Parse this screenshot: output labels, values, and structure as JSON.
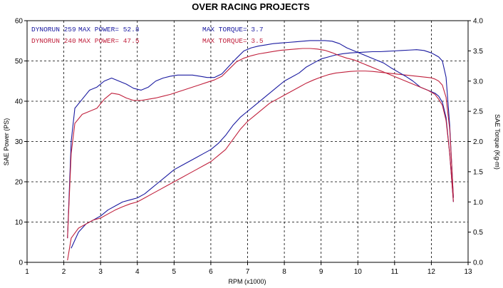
{
  "chart_data": {
    "type": "line",
    "title": "OVER RACING PROJECTS",
    "xlabel": "RPM (x1000)",
    "ylabel_left": "SAE Power (PS)",
    "ylabel_right": "SAE Torque (Kg-m)",
    "xlim": [
      1,
      13
    ],
    "ylim_left": [
      0,
      60
    ],
    "ylim_right": [
      0,
      4
    ],
    "x_ticks": [
      "1",
      "2",
      "3",
      "4",
      "5",
      "6",
      "7",
      "8",
      "9",
      "10",
      "11",
      "12",
      "13"
    ],
    "y_left_ticks": [
      "0",
      "10",
      "20",
      "30",
      "40",
      "50",
      "60"
    ],
    "y_right_ticks": [
      "0.0",
      "0.5",
      "1.0",
      "1.5",
      "2.0",
      "2.5",
      "3.0",
      "3.5",
      "4.0"
    ],
    "grid": true,
    "legend": [
      {
        "run": "DYNORUN 259",
        "power": "MAX POWER= 52.8",
        "torque": "MAX TORQUE= 3.7",
        "color": "#1a1aa0"
      },
      {
        "run": "DYNORUN 240",
        "power": "MAX POWER= 47.5",
        "torque": "MAX TORQUE= 3.5",
        "color": "#c0203c"
      }
    ],
    "series": [
      {
        "name": "DYNORUN 259",
        "measure": "power",
        "axis": "left",
        "color": "#1a1aa0",
        "x": [
          2.2,
          2.4,
          2.6,
          2.8,
          3.0,
          3.2,
          3.4,
          3.6,
          3.8,
          4.0,
          4.2,
          4.4,
          4.6,
          4.8,
          5.0,
          5.2,
          5.4,
          5.6,
          5.8,
          6.0,
          6.2,
          6.4,
          6.6,
          6.8,
          7.0,
          7.2,
          7.4,
          7.6,
          7.8,
          8.0,
          8.2,
          8.4,
          8.6,
          8.8,
          9.0,
          9.2,
          9.4,
          9.6,
          9.8,
          10.0,
          10.2,
          10.4,
          10.6,
          10.8,
          11.0,
          11.2,
          11.4,
          11.6,
          11.8,
          12.0,
          12.1,
          12.2,
          12.3,
          12.4,
          12.5,
          12.55,
          12.6
        ],
        "y": [
          3.5,
          7.5,
          9.5,
          10.5,
          11.5,
          13.0,
          14.0,
          15.0,
          15.5,
          16.0,
          17.0,
          18.5,
          20.0,
          21.5,
          23.0,
          24.0,
          25.0,
          26.0,
          27.0,
          28.0,
          29.5,
          31.5,
          34.0,
          36.0,
          37.5,
          39.0,
          40.5,
          42.0,
          43.5,
          45.0,
          46.0,
          47.0,
          48.5,
          49.5,
          50.5,
          51.0,
          51.5,
          51.8,
          52.0,
          52.1,
          52.2,
          52.3,
          52.3,
          52.4,
          52.5,
          52.6,
          52.7,
          52.8,
          52.6,
          52.0,
          51.5,
          51.0,
          50.0,
          46.0,
          34.0,
          25.0,
          16.0
        ]
      },
      {
        "name": "DYNORUN 240",
        "measure": "power",
        "axis": "left",
        "color": "#c0203c",
        "x": [
          2.1,
          2.2,
          2.4,
          2.6,
          2.8,
          3.0,
          3.2,
          3.4,
          3.6,
          3.8,
          4.0,
          4.2,
          4.4,
          4.6,
          4.8,
          5.0,
          5.2,
          5.4,
          5.6,
          5.8,
          6.0,
          6.2,
          6.4,
          6.6,
          6.8,
          7.0,
          7.2,
          7.4,
          7.6,
          7.8,
          8.0,
          8.2,
          8.4,
          8.6,
          8.8,
          9.0,
          9.2,
          9.4,
          9.6,
          9.8,
          10.0,
          10.2,
          10.4,
          10.6,
          10.8,
          11.0,
          11.2,
          11.4,
          11.6,
          11.8,
          12.0,
          12.1,
          12.2,
          12.3,
          12.4,
          12.5,
          12.55,
          12.6
        ],
        "y": [
          0.5,
          6.0,
          8.5,
          9.5,
          10.5,
          11.0,
          12.0,
          13.0,
          13.8,
          14.5,
          15.0,
          16.0,
          17.0,
          18.0,
          19.0,
          20.0,
          21.0,
          22.0,
          23.0,
          24.0,
          25.0,
          26.5,
          28.0,
          30.5,
          33.0,
          35.0,
          36.5,
          38.0,
          39.5,
          40.5,
          41.5,
          42.5,
          43.5,
          44.5,
          45.3,
          46.0,
          46.6,
          47.0,
          47.2,
          47.4,
          47.5,
          47.5,
          47.4,
          47.2,
          47.0,
          46.8,
          46.6,
          46.4,
          46.2,
          46.0,
          45.8,
          45.5,
          45.0,
          44.0,
          41.0,
          33.0,
          25.0,
          16.0
        ]
      },
      {
        "name": "DYNORUN 259",
        "measure": "torque",
        "axis": "right",
        "color": "#1a1aa0",
        "x": [
          2.1,
          2.15,
          2.2,
          2.3,
          2.5,
          2.7,
          2.9,
          3.1,
          3.3,
          3.5,
          3.7,
          3.9,
          4.1,
          4.3,
          4.5,
          4.7,
          4.9,
          5.1,
          5.3,
          5.5,
          5.7,
          5.9,
          6.1,
          6.3,
          6.5,
          6.7,
          6.9,
          7.1,
          7.3,
          7.5,
          7.7,
          7.9,
          8.1,
          8.3,
          8.5,
          8.7,
          8.9,
          9.1,
          9.3,
          9.5,
          9.7,
          9.9,
          10.1,
          10.3,
          10.5,
          10.7,
          10.9,
          11.1,
          11.3,
          11.5,
          11.7,
          11.9,
          12.1,
          12.2,
          12.3,
          12.4,
          12.5,
          12.6
        ],
        "y": [
          0.4,
          1.2,
          2.0,
          2.55,
          2.7,
          2.85,
          2.9,
          3.0,
          3.05,
          3.0,
          2.95,
          2.88,
          2.85,
          2.9,
          3.0,
          3.05,
          3.08,
          3.1,
          3.1,
          3.1,
          3.08,
          3.06,
          3.06,
          3.12,
          3.25,
          3.38,
          3.5,
          3.55,
          3.58,
          3.6,
          3.62,
          3.63,
          3.64,
          3.65,
          3.66,
          3.67,
          3.67,
          3.67,
          3.66,
          3.62,
          3.55,
          3.5,
          3.45,
          3.4,
          3.35,
          3.3,
          3.22,
          3.15,
          3.08,
          3.0,
          2.9,
          2.85,
          2.8,
          2.75,
          2.65,
          2.4,
          1.8,
          1.0
        ]
      },
      {
        "name": "DYNORUN 240",
        "measure": "torque",
        "axis": "right",
        "color": "#c0203c",
        "x": [
          2.1,
          2.15,
          2.2,
          2.3,
          2.5,
          2.7,
          2.9,
          3.1,
          3.3,
          3.5,
          3.7,
          3.9,
          4.1,
          4.3,
          4.5,
          4.7,
          4.9,
          5.1,
          5.3,
          5.5,
          5.7,
          5.9,
          6.1,
          6.3,
          6.5,
          6.7,
          6.9,
          7.1,
          7.3,
          7.5,
          7.7,
          7.9,
          8.1,
          8.3,
          8.5,
          8.7,
          8.9,
          9.1,
          9.3,
          9.5,
          9.7,
          9.9,
          10.1,
          10.3,
          10.5,
          10.7,
          10.9,
          11.1,
          11.3,
          11.5,
          11.7,
          11.9,
          12.1,
          12.2,
          12.3,
          12.4,
          12.5,
          12.6
        ],
        "y": [
          0.4,
          1.1,
          1.8,
          2.3,
          2.45,
          2.5,
          2.55,
          2.7,
          2.8,
          2.78,
          2.72,
          2.68,
          2.68,
          2.7,
          2.72,
          2.75,
          2.78,
          2.82,
          2.86,
          2.9,
          2.94,
          2.98,
          3.02,
          3.08,
          3.2,
          3.32,
          3.38,
          3.42,
          3.45,
          3.47,
          3.49,
          3.51,
          3.52,
          3.53,
          3.54,
          3.54,
          3.53,
          3.51,
          3.47,
          3.42,
          3.38,
          3.35,
          3.3,
          3.25,
          3.2,
          3.15,
          3.1,
          3.05,
          3.0,
          2.95,
          2.9,
          2.85,
          2.78,
          2.7,
          2.6,
          2.35,
          1.8,
          1.0
        ]
      }
    ]
  }
}
